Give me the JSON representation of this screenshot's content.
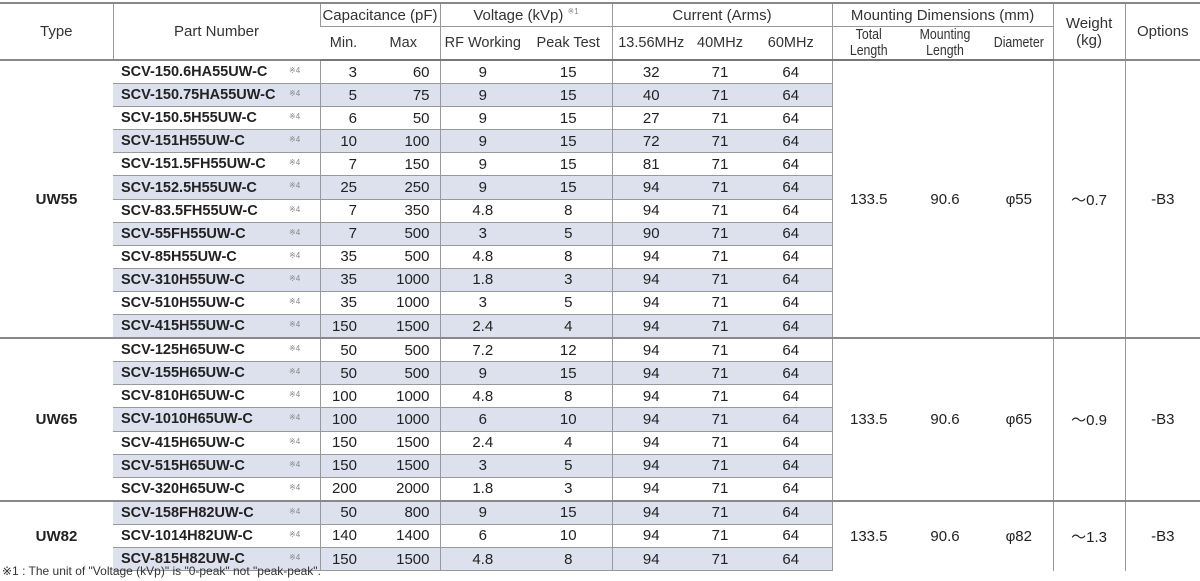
{
  "header": {
    "type": "Type",
    "part_number": "Part Number",
    "capacitance": "Capacitance (pF)",
    "cap_min": "Min.",
    "cap_max": "Max",
    "voltage": "Voltage (kVp)",
    "voltage_note": "※1",
    "rf_working": "RF Working",
    "peak_test": "Peak Test",
    "current": "Current (Arms)",
    "f1": "13.56MHz",
    "f2": "40MHz",
    "f3": "60MHz",
    "mounting": "Mounting Dimensions (mm)",
    "total_length": "Total Length",
    "mounting_length": "Mounting Length",
    "diameter": "Diameter",
    "weight": "Weight (kg)",
    "options": "Options"
  },
  "groups": [
    {
      "type": "UW55",
      "total_length": "133.5",
      "mounting_length": "90.6",
      "diameter": "φ55",
      "weight": "～0.7",
      "options": "-B3",
      "rows": [
        [
          "SCV-150.6HA55UW-C",
          "3",
          "60",
          "9",
          "15",
          "32",
          "71",
          "64"
        ],
        [
          "SCV-150.75HA55UW-C",
          "5",
          "75",
          "9",
          "15",
          "40",
          "71",
          "64"
        ],
        [
          "SCV-150.5H55UW-C",
          "6",
          "50",
          "9",
          "15",
          "27",
          "71",
          "64"
        ],
        [
          "SCV-151H55UW-C",
          "10",
          "100",
          "9",
          "15",
          "72",
          "71",
          "64"
        ],
        [
          "SCV-151.5FH55UW-C",
          "7",
          "150",
          "9",
          "15",
          "81",
          "71",
          "64"
        ],
        [
          "SCV-152.5H55UW-C",
          "25",
          "250",
          "9",
          "15",
          "94",
          "71",
          "64"
        ],
        [
          "SCV-83.5FH55UW-C",
          "7",
          "350",
          "4.8",
          "8",
          "94",
          "71",
          "64"
        ],
        [
          "SCV-55FH55UW-C",
          "7",
          "500",
          "3",
          "5",
          "90",
          "71",
          "64"
        ],
        [
          "SCV-85H55UW-C",
          "35",
          "500",
          "4.8",
          "8",
          "94",
          "71",
          "64"
        ],
        [
          "SCV-310H55UW-C",
          "35",
          "1000",
          "1.8",
          "3",
          "94",
          "71",
          "64"
        ],
        [
          "SCV-510H55UW-C",
          "35",
          "1000",
          "3",
          "5",
          "94",
          "71",
          "64"
        ],
        [
          "SCV-415H55UW-C",
          "150",
          "1500",
          "2.4",
          "4",
          "94",
          "71",
          "64"
        ]
      ]
    },
    {
      "type": "UW65",
      "total_length": "133.5",
      "mounting_length": "90.6",
      "diameter": "φ65",
      "weight": "～0.9",
      "options": "-B3",
      "rows": [
        [
          "SCV-125H65UW-C",
          "50",
          "500",
          "7.2",
          "12",
          "94",
          "71",
          "64"
        ],
        [
          "SCV-155H65UW-C",
          "50",
          "500",
          "9",
          "15",
          "94",
          "71",
          "64"
        ],
        [
          "SCV-810H65UW-C",
          "100",
          "1000",
          "4.8",
          "8",
          "94",
          "71",
          "64"
        ],
        [
          "SCV-1010H65UW-C",
          "100",
          "1000",
          "6",
          "10",
          "94",
          "71",
          "64"
        ],
        [
          "SCV-415H65UW-C",
          "150",
          "1500",
          "2.4",
          "4",
          "94",
          "71",
          "64"
        ],
        [
          "SCV-515H65UW-C",
          "150",
          "1500",
          "3",
          "5",
          "94",
          "71",
          "64"
        ],
        [
          "SCV-320H65UW-C",
          "200",
          "2000",
          "1.8",
          "3",
          "94",
          "71",
          "64"
        ]
      ]
    },
    {
      "type": "UW82",
      "total_length": "133.5",
      "mounting_length": "90.6",
      "diameter": "φ82",
      "weight": "～1.3",
      "options": "-B3",
      "rows": [
        [
          "SCV-158FH82UW-C",
          "50",
          "800",
          "9",
          "15",
          "94",
          "71",
          "64"
        ],
        [
          "SCV-1014H82UW-C",
          "140",
          "1400",
          "6",
          "10",
          "94",
          "71",
          "64"
        ],
        [
          "SCV-815H82UW-C",
          "150",
          "1500",
          "4.8",
          "8",
          "94",
          "71",
          "64"
        ]
      ]
    }
  ],
  "part_note": "※4",
  "footnote": "※1 : The unit of \"Voltage (kVp)\" is \"0-peak\" not \"peak-peak\"."
}
